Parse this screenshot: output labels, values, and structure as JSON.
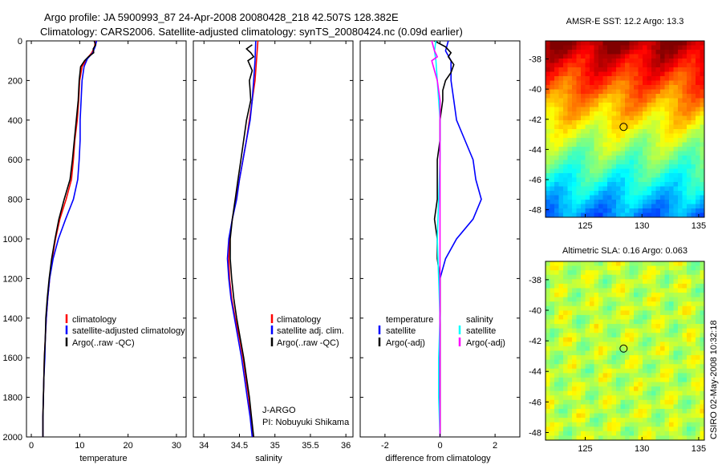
{
  "header": {
    "line1": "Argo profile: JA 5900993_87 24-Apr-2008 20080428_218 42.507S 128.382E",
    "line2": "Climatology: CARS2006. Satellite-adjusted climatology: synTS_20080424.nc (0.09d earlier)"
  },
  "credit": "CSIRO 02-May-2008 10:32:18",
  "colors": {
    "climatology": "#ff0000",
    "satellite": "#0000ff",
    "argo": "#000000",
    "sal_satellite": "#00ffff",
    "sal_argo": "#ff00ff"
  },
  "chart_data": [
    {
      "type": "line",
      "id": "temperature",
      "xlabel": "temperature",
      "ylim": [
        2000,
        0
      ],
      "xlim": [
        -1,
        32
      ],
      "xticks": [
        0,
        10,
        20,
        30
      ],
      "yticks": [
        0,
        200,
        400,
        600,
        800,
        1000,
        1200,
        1400,
        1600,
        1800,
        2000
      ],
      "legend": {
        "placement": "lower-right",
        "entries": [
          "climatology",
          "satellite-adjusted climatology",
          "Argo(..raw -QC)"
        ]
      },
      "series": [
        {
          "name": "climatology",
          "color": "#ff0000",
          "points": [
            [
              13.2,
              0
            ],
            [
              13.1,
              30
            ],
            [
              12.5,
              60
            ],
            [
              11.5,
              90
            ],
            [
              10.5,
              130
            ],
            [
              10.0,
              200
            ],
            [
              9.8,
              300
            ],
            [
              9.5,
              400
            ],
            [
              9.0,
              500
            ],
            [
              8.7,
              600
            ],
            [
              8.3,
              700
            ],
            [
              7.2,
              800
            ],
            [
              5.9,
              900
            ],
            [
              5.0,
              1000
            ],
            [
              4.3,
              1100
            ],
            [
              3.8,
              1200
            ],
            [
              3.4,
              1300
            ],
            [
              3.1,
              1400
            ],
            [
              2.9,
              1500
            ],
            [
              2.7,
              1600
            ],
            [
              2.6,
              1700
            ],
            [
              2.5,
              1800
            ],
            [
              2.4,
              1900
            ],
            [
              2.4,
              2000
            ]
          ]
        },
        {
          "name": "satellite-adjusted climatology",
          "color": "#0000ff",
          "points": [
            [
              13.5,
              0
            ],
            [
              13.2,
              30
            ],
            [
              12.7,
              60
            ],
            [
              11.6,
              90
            ],
            [
              10.9,
              130
            ],
            [
              10.5,
              200
            ],
            [
              10.3,
              300
            ],
            [
              10.1,
              400
            ],
            [
              10.1,
              500
            ],
            [
              9.9,
              600
            ],
            [
              9.6,
              700
            ],
            [
              8.7,
              800
            ],
            [
              7.1,
              900
            ],
            [
              5.6,
              1000
            ],
            [
              4.5,
              1100
            ],
            [
              3.8,
              1200
            ],
            [
              3.4,
              1300
            ],
            [
              3.1,
              1400
            ],
            [
              2.9,
              1500
            ],
            [
              2.8,
              1600
            ],
            [
              2.6,
              1700
            ],
            [
              2.5,
              1800
            ],
            [
              2.4,
              1900
            ],
            [
              2.4,
              2000
            ]
          ]
        },
        {
          "name": "Argo(..raw -QC)",
          "color": "#000000",
          "points": [
            [
              13.0,
              0
            ],
            [
              13.3,
              20
            ],
            [
              12.8,
              40
            ],
            [
              12.9,
              60
            ],
            [
              11.8,
              80
            ],
            [
              11.0,
              100
            ],
            [
              10.2,
              130
            ],
            [
              9.9,
              200
            ],
            [
              9.7,
              300
            ],
            [
              9.3,
              400
            ],
            [
              8.9,
              500
            ],
            [
              8.5,
              600
            ],
            [
              8.0,
              700
            ],
            [
              6.8,
              800
            ],
            [
              5.7,
              900
            ],
            [
              4.9,
              1000
            ],
            [
              4.2,
              1100
            ],
            [
              3.7,
              1200
            ],
            [
              3.3,
              1300
            ],
            [
              3.0,
              1400
            ],
            [
              2.9,
              1500
            ],
            [
              2.7,
              1600
            ],
            [
              2.6,
              1700
            ],
            [
              2.5,
              1800
            ],
            [
              2.4,
              1900
            ],
            [
              2.4,
              2000
            ]
          ]
        }
      ]
    },
    {
      "type": "line",
      "id": "salinity",
      "xlabel": "salinity",
      "ylim": [
        2000,
        0
      ],
      "xlim": [
        33.85,
        36.1
      ],
      "xticks": [
        34,
        34.5,
        35,
        35.5,
        36
      ],
      "legend": {
        "placement": "lower-right",
        "entries": [
          "climatology",
          "satellite adj. clim.",
          "Argo(..raw -QC)"
        ]
      },
      "annotation": [
        "J-ARGO",
        "PI: Nobuyuki Shikama"
      ],
      "series": [
        {
          "name": "climatology",
          "color": "#ff0000",
          "points": [
            [
              34.76,
              0
            ],
            [
              34.74,
              100
            ],
            [
              34.72,
              200
            ],
            [
              34.68,
              300
            ],
            [
              34.64,
              400
            ],
            [
              34.6,
              500
            ],
            [
              34.55,
              600
            ],
            [
              34.5,
              700
            ],
            [
              34.45,
              800
            ],
            [
              34.4,
              900
            ],
            [
              34.36,
              1000
            ],
            [
              34.35,
              1100
            ],
            [
              34.36,
              1200
            ],
            [
              34.39,
              1300
            ],
            [
              34.44,
              1400
            ],
            [
              34.5,
              1500
            ],
            [
              34.55,
              1600
            ],
            [
              34.59,
              1700
            ],
            [
              34.63,
              1800
            ],
            [
              34.66,
              1900
            ],
            [
              34.69,
              2000
            ]
          ]
        },
        {
          "name": "satellite adj. clim.",
          "color": "#0000ff",
          "points": [
            [
              34.73,
              0
            ],
            [
              34.72,
              100
            ],
            [
              34.7,
              200
            ],
            [
              34.68,
              300
            ],
            [
              34.65,
              400
            ],
            [
              34.6,
              500
            ],
            [
              34.55,
              600
            ],
            [
              34.5,
              700
            ],
            [
              34.46,
              800
            ],
            [
              34.4,
              900
            ],
            [
              34.35,
              1000
            ],
            [
              34.33,
              1100
            ],
            [
              34.35,
              1200
            ],
            [
              34.38,
              1300
            ],
            [
              34.43,
              1400
            ],
            [
              34.48,
              1500
            ],
            [
              34.53,
              1600
            ],
            [
              34.57,
              1700
            ],
            [
              34.61,
              1800
            ],
            [
              34.65,
              1900
            ],
            [
              34.68,
              2000
            ]
          ]
        },
        {
          "name": "Argo(..raw -QC)",
          "color": "#000000",
          "points": [
            [
              34.68,
              20
            ],
            [
              34.6,
              40
            ],
            [
              34.66,
              60
            ],
            [
              34.7,
              80
            ],
            [
              34.62,
              100
            ],
            [
              34.68,
              150
            ],
            [
              34.64,
              200
            ],
            [
              34.65,
              250
            ],
            [
              34.66,
              300
            ],
            [
              34.6,
              400
            ],
            [
              34.56,
              500
            ],
            [
              34.52,
              600
            ],
            [
              34.48,
              700
            ],
            [
              34.44,
              800
            ],
            [
              34.4,
              900
            ],
            [
              34.37,
              1000
            ],
            [
              34.37,
              1100
            ],
            [
              34.39,
              1200
            ],
            [
              34.42,
              1300
            ],
            [
              34.46,
              1400
            ],
            [
              34.51,
              1500
            ],
            [
              34.56,
              1600
            ],
            [
              34.6,
              1700
            ],
            [
              34.64,
              1800
            ],
            [
              34.67,
              1900
            ],
            [
              34.7,
              2000
            ]
          ]
        }
      ]
    },
    {
      "type": "line",
      "id": "difference",
      "xlabel": "difference from climatology",
      "ylim": [
        2000,
        0
      ],
      "xlim": [
        -2.9,
        2.9
      ],
      "xticks": [
        -2,
        0,
        2
      ],
      "legend": {
        "placement": "lower-center",
        "groups": [
          {
            "title": "temperature",
            "entries": [
              "satellite",
              "Argo(-adj)"
            ]
          },
          {
            "title": "salinity",
            "entries": [
              "satellite",
              "Argo(-adj)"
            ]
          }
        ]
      },
      "series": [
        {
          "name": "temperature satellite",
          "color": "#0000ff",
          "points": [
            [
              0.3,
              0
            ],
            [
              0.2,
              50
            ],
            [
              0.4,
              100
            ],
            [
              0.4,
              200
            ],
            [
              0.5,
              300
            ],
            [
              0.6,
              400
            ],
            [
              0.9,
              500
            ],
            [
              1.2,
              600
            ],
            [
              1.3,
              700
            ],
            [
              1.5,
              800
            ],
            [
              1.2,
              900
            ],
            [
              0.6,
              1000
            ],
            [
              0.2,
              1100
            ],
            [
              0.0,
              1200
            ],
            [
              0.0,
              1400
            ],
            [
              0.0,
              1600
            ],
            [
              0.0,
              1800
            ],
            [
              0.0,
              2000
            ]
          ]
        },
        {
          "name": "temperature Argo(-adj)",
          "color": "#000000",
          "points": [
            [
              -0.2,
              0
            ],
            [
              0.2,
              30
            ],
            [
              0.4,
              60
            ],
            [
              0.3,
              80
            ],
            [
              0.5,
              120
            ],
            [
              0.4,
              160
            ],
            [
              0.2,
              200
            ],
            [
              0.1,
              250
            ],
            [
              0.1,
              300
            ],
            [
              0.0,
              400
            ],
            [
              0.0,
              500
            ],
            [
              -0.1,
              600
            ],
            [
              -0.1,
              700
            ],
            [
              -0.1,
              800
            ],
            [
              -0.2,
              900
            ],
            [
              -0.1,
              1000
            ],
            [
              -0.1,
              1100
            ],
            [
              0.0,
              1200
            ],
            [
              0.0,
              1400
            ],
            [
              0.0,
              1600
            ],
            [
              0.0,
              1800
            ],
            [
              0.0,
              2000
            ]
          ]
        },
        {
          "name": "salinity satellite",
          "color": "#00ffff",
          "points": [
            [
              -0.15,
              0
            ],
            [
              -0.2,
              50
            ],
            [
              -0.15,
              100
            ],
            [
              -0.1,
              200
            ],
            [
              -0.05,
              300
            ],
            [
              0.0,
              400
            ],
            [
              0.0,
              600
            ],
            [
              -0.05,
              800
            ],
            [
              -0.1,
              1000
            ],
            [
              -0.05,
              1200
            ],
            [
              0.0,
              1400
            ],
            [
              -0.05,
              1600
            ],
            [
              -0.05,
              1800
            ],
            [
              0.0,
              2000
            ]
          ]
        },
        {
          "name": "salinity Argo(-adj)",
          "color": "#ff00ff",
          "points": [
            [
              -0.3,
              0
            ],
            [
              -0.2,
              50
            ],
            [
              -0.1,
              80
            ],
            [
              -0.3,
              100
            ],
            [
              -0.2,
              150
            ],
            [
              -0.1,
              200
            ],
            [
              -0.05,
              250
            ],
            [
              0.0,
              300
            ],
            [
              0.0,
              500
            ],
            [
              0.0,
              700
            ],
            [
              0.0,
              1000
            ],
            [
              0.0,
              1500
            ],
            [
              0.0,
              2000
            ]
          ]
        }
      ]
    },
    {
      "type": "heatmap",
      "id": "sst-map",
      "title": "AMSR-E SST: 12.2 Argo: 13.3",
      "xlim": [
        121.5,
        135.5
      ],
      "ylim": [
        -48.5,
        -36.8
      ],
      "xticks": [
        125,
        130,
        135
      ],
      "yticks": [
        -38,
        -40,
        -42,
        -44,
        -46,
        -48
      ],
      "marker": [
        128.382,
        -42.507
      ],
      "note": "Satellite SST field; warm (north) to cold (south)"
    },
    {
      "type": "heatmap",
      "id": "sla-map",
      "title": "Altimetric SLA: 0.16 Argo: 0.063",
      "xlim": [
        121.5,
        135.5
      ],
      "ylim": [
        -48.5,
        -36.8
      ],
      "xticks": [
        125,
        130,
        135
      ],
      "yticks": [
        -38,
        -40,
        -42,
        -44,
        -46,
        -48
      ],
      "marker": [
        128.382,
        -42.507
      ],
      "note": "Sea level anomaly field; mostly near-zero (green/yellow)"
    }
  ]
}
